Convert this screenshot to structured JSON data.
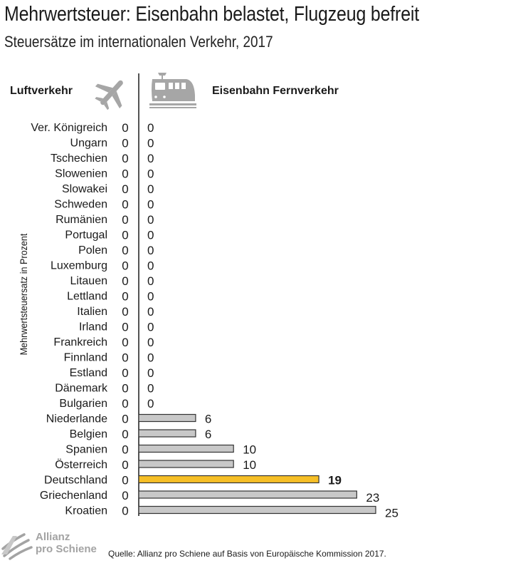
{
  "header": {
    "title": "Mehrwertsteuer: Eisenbahn belastet, Flugzeug befreit",
    "subtitle": "Steuersätze im internationalen Verkehr, 2017"
  },
  "columns": {
    "air": "Luftverkehr",
    "rail": "Eisenbahn Fernverkehr"
  },
  "icons": {
    "air": "airplane-icon",
    "rail": "train-icon",
    "logo": "allianz-logo-icon"
  },
  "footer": {
    "source": "Quelle: Allianz pro Schiene auf Basis von Europäische Kommission 2017.",
    "logo_line1": "Allianz",
    "logo_line2": "pro Schiene"
  },
  "colors": {
    "bar": "#c8c8c8",
    "highlight": "#f6bf26",
    "stroke": "#333333",
    "logo": "#a3a3a3"
  },
  "chart_data": {
    "type": "bar",
    "orientation": "horizontal",
    "ylabel": "Mehrwertsteuersatz in Prozent",
    "categories": [
      "Ver. Königreich",
      "Ungarn",
      "Tschechien",
      "Slowenien",
      "Slowakei",
      "Schweden",
      "Rumänien",
      "Portugal",
      "Polen",
      "Luxemburg",
      "Litauen",
      "Lettland",
      "Italien",
      "Irland",
      "Frankreich",
      "Finnland",
      "Estland",
      "Dänemark",
      "Bulgarien",
      "Niederlande",
      "Belgien",
      "Spanien",
      "Österreich",
      "Deutschland",
      "Griechenland",
      "Kroatien"
    ],
    "series": [
      {
        "name": "Luftverkehr",
        "values": [
          0,
          0,
          0,
          0,
          0,
          0,
          0,
          0,
          0,
          0,
          0,
          0,
          0,
          0,
          0,
          0,
          0,
          0,
          0,
          0,
          0,
          0,
          0,
          0,
          0,
          0
        ]
      },
      {
        "name": "Eisenbahn Fernverkehr",
        "values": [
          0,
          0,
          0,
          0,
          0,
          0,
          0,
          0,
          0,
          0,
          0,
          0,
          0,
          0,
          0,
          0,
          0,
          0,
          0,
          6,
          6,
          10,
          10,
          19,
          23,
          25
        ]
      }
    ],
    "highlight": "Deutschland",
    "xlim": [
      0,
      25
    ],
    "grid": false,
    "legend": "none"
  }
}
